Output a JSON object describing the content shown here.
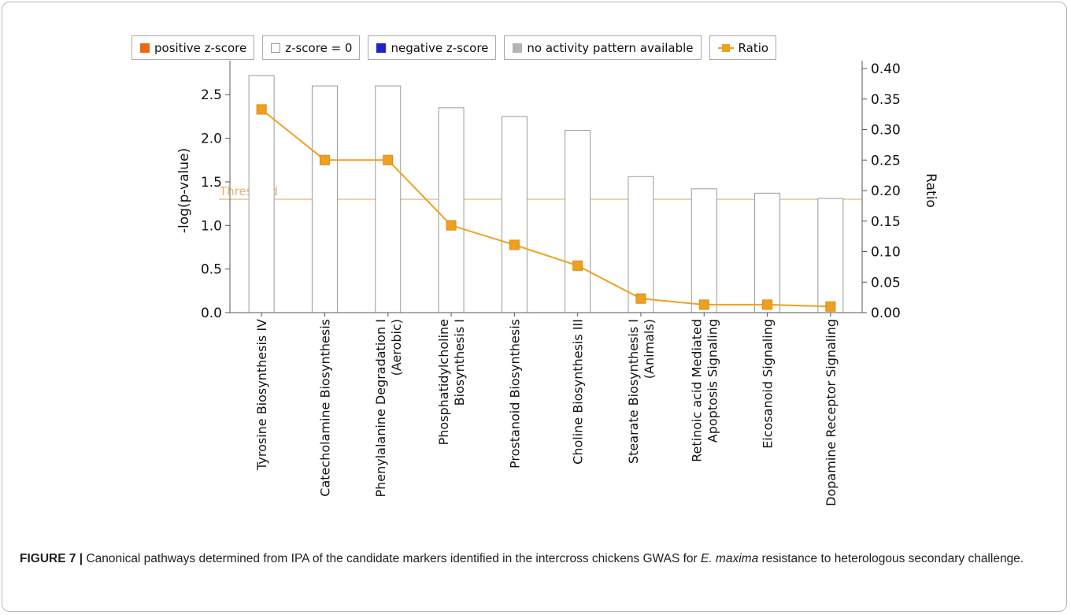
{
  "legend": {
    "items": [
      {
        "label": "positive z-score",
        "color": "#e86a10",
        "kind": "box"
      },
      {
        "label": "z-score = 0",
        "color": "#ffffff",
        "kind": "box"
      },
      {
        "label": "negative z-score",
        "color": "#1f24c8",
        "kind": "box"
      },
      {
        "label": "no activity pattern available",
        "color": "#b4b4b4",
        "kind": "box"
      },
      {
        "label": "Ratio",
        "color": "#f0a020",
        "kind": "line-marker"
      }
    ]
  },
  "chart_data": {
    "type": "bar",
    "categories": [
      "Tyrosine Biosynthesis IV",
      "Catecholamine Biosynthesis",
      "Phenylalanine Degradation I (Aerobic)",
      "Phosphatidylcholine Biosynthesis I",
      "Prostanoid Biosynthesis",
      "Choline Biosynthesis III",
      "Stearate Biosynthesis I (Animals)",
      "Retinoic acid Mediated Apoptosis Signaling",
      "Eicosanoid Signaling",
      "Dopamine Receptor Signaling"
    ],
    "category_label_lines": [
      [
        "Tyrosine Biosynthesis IV"
      ],
      [
        "Catecholamine Biosynthesis"
      ],
      [
        "Phenylalanine Degradation I",
        "(Aerobic)"
      ],
      [
        "Phosphatidylcholine",
        "Biosynthesis I"
      ],
      [
        "Prostanoid Biosynthesis"
      ],
      [
        "Choline Biosynthesis III"
      ],
      [
        "Stearate Biosynthesis I",
        "(Animals)"
      ],
      [
        "Retinoic acid Mediated",
        "Apoptosis Signaling"
      ],
      [
        "Eicosanoid Signaling"
      ],
      [
        "Dopamine Receptor Signaling"
      ]
    ],
    "series": [
      {
        "name": "-log(p-value)",
        "axis": "left",
        "kind": "bar",
        "values": [
          2.72,
          2.6,
          2.6,
          2.35,
          2.25,
          2.09,
          1.56,
          1.42,
          1.37,
          1.31
        ]
      },
      {
        "name": "Ratio",
        "axis": "right",
        "kind": "line",
        "values": [
          0.333,
          0.25,
          0.25,
          0.143,
          0.111,
          0.077,
          0.023,
          0.013,
          0.013,
          0.01
        ]
      }
    ],
    "ylabel": "-log(p-value)",
    "y2label": "Ratio",
    "ylim": [
      0,
      2.8
    ],
    "y2lim": [
      0,
      0.4
    ],
    "yticks": [
      "0.0",
      "0.5",
      "1.0",
      "1.5",
      "2.0",
      "2.5"
    ],
    "y2ticks": [
      "0.00",
      "0.05",
      "0.10",
      "0.15",
      "0.20",
      "0.25",
      "0.30",
      "0.35",
      "0.40"
    ],
    "threshold": {
      "label": "Threshold",
      "value": 1.3
    },
    "bar_color": "#ffffff",
    "bar_border": "#9a9a9a",
    "line_color": "#f0a020",
    "threshold_color": "#e6b070",
    "grid": false,
    "legend_position": "top"
  },
  "caption": {
    "label": "FIGURE 7 |",
    "text_before": " Canonical pathways determined from IPA of the candidate markers identified in the intercross chickens GWAS for ",
    "italic": "E. maxima",
    "text_after": " resistance to heterologous secondary challenge."
  }
}
